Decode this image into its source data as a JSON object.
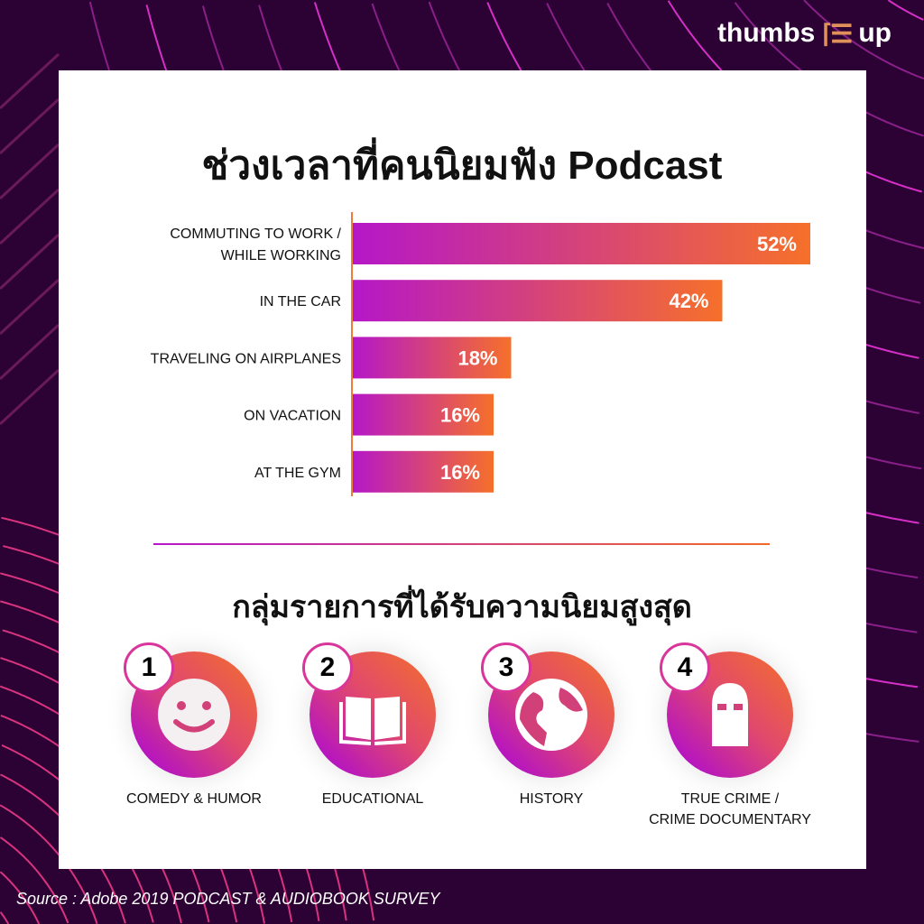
{
  "brand": {
    "logo_text_left": "thumbs",
    "logo_text_right": "up"
  },
  "colors": {
    "background": "#2b0233",
    "bar_start": "#b517c8",
    "bar_end": "#f6702a",
    "accent_line": "#d63bbd"
  },
  "chart_data": {
    "type": "bar",
    "orientation": "horizontal",
    "title": "ช่วงเวลาที่คนนิยมฟัง Podcast",
    "categories": [
      [
        "COMMUTING TO WORK /",
        "WHILE WORKING"
      ],
      [
        "IN THE CAR"
      ],
      [
        "TRAVELING ON AIRPLANES"
      ],
      [
        "ON VACATION"
      ],
      [
        "AT THE GYM"
      ]
    ],
    "values": [
      52,
      42,
      18,
      16,
      16
    ],
    "data_labels": [
      "52%",
      "42%",
      "18%",
      "16%",
      "16%"
    ],
    "unit": "%"
  },
  "genres": {
    "title": "กลุ่มรายการที่ได้รับความนิยมสูงสุด",
    "items": [
      {
        "rank": "1",
        "icon": "smiley-icon",
        "label": [
          "COMEDY & HUMOR"
        ]
      },
      {
        "rank": "2",
        "icon": "book-icon",
        "label": [
          "EDUCATIONAL"
        ]
      },
      {
        "rank": "3",
        "icon": "globe-icon",
        "label": [
          "HISTORY"
        ]
      },
      {
        "rank": "4",
        "icon": "balaclava-icon",
        "label": [
          "TRUE CRIME /",
          "CRIME DOCUMENTARY"
        ]
      }
    ]
  },
  "source": "Source : Adobe 2019 PODCAST & AUDIOBOOK SURVEY"
}
